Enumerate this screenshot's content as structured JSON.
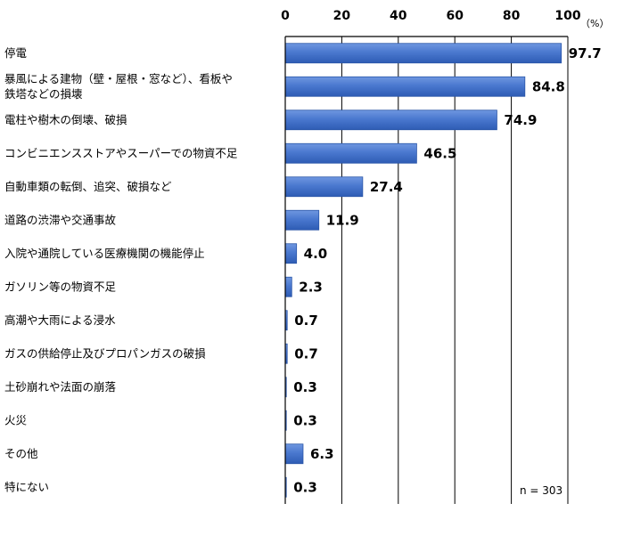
{
  "chart_data": {
    "type": "bar",
    "orientation": "horizontal",
    "categories": [
      [
        "停電"
      ],
      [
        "暴風による建物（壁・屋根・窓など）、看板や",
        "鉄塔などの損壊"
      ],
      [
        "電柱や樹木の倒壊、破損"
      ],
      [
        "コンビニエンスストアやスーパーでの物資不足"
      ],
      [
        "自動車類の転倒、追突、破損など"
      ],
      [
        "道路の渋滞や交通事故"
      ],
      [
        "入院や通院している医療機関の機能停止"
      ],
      [
        "ガソリン等の物資不足"
      ],
      [
        "高潮や大雨による浸水"
      ],
      [
        "ガスの供給停止及びプロパンガスの破損"
      ],
      [
        "土砂崩れや法面の崩落"
      ],
      [
        "火災"
      ],
      [
        "その他"
      ],
      [
        "特にない"
      ]
    ],
    "values": [
      97.7,
      84.8,
      74.9,
      46.5,
      27.4,
      11.9,
      4.0,
      2.3,
      0.7,
      0.7,
      0.3,
      0.3,
      6.3,
      0.3
    ],
    "value_labels": [
      "97.7",
      "84.8",
      "74.9",
      "46.5",
      "27.4",
      "11.9",
      "4.0",
      "2.3",
      "0.7",
      "0.7",
      "0.3",
      "0.3",
      "6.3",
      "0.3"
    ],
    "xlim": [
      0,
      100
    ],
    "xticks": [
      "0",
      "20",
      "40",
      "60",
      "80",
      "100"
    ],
    "unit": "（%）",
    "note": "n = 303",
    "grid": true,
    "bar_color": "#4a78cf",
    "bar_color_dark": "#2a56a8"
  }
}
